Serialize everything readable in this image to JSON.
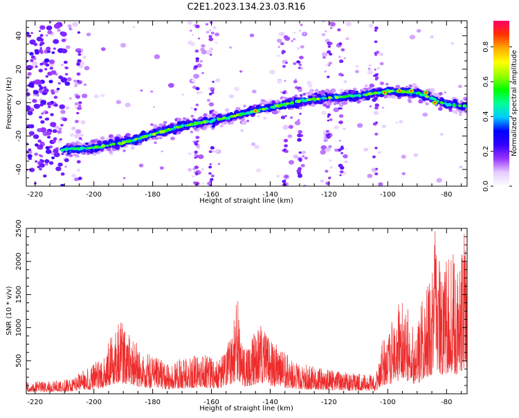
{
  "figure": {
    "title": "C2E1.2023.134.23.03.R16"
  },
  "chart_data": [
    {
      "type": "heatmap",
      "xlabel": "Height of straight line (km)",
      "ylabel": "Frequency (Hz)",
      "xlim": [
        -223,
        -73
      ],
      "ylim": [
        -50,
        49
      ],
      "x_ticks": [
        -220,
        -200,
        -180,
        -160,
        -140,
        -120,
        -100,
        -80
      ],
      "y_ticks": [
        -40,
        -20,
        0,
        20,
        40
      ],
      "grid": false,
      "colorbar": {
        "label": "Normalized spectral amplitude",
        "range": [
          0,
          0.95
        ],
        "ticks": [
          "0.0",
          "0.2",
          "0.4",
          "0.6",
          "0.8"
        ],
        "colormap": [
          "#ffffff",
          "#e6ccff",
          "#9933ff",
          "#3300ff",
          "#0000ff",
          "#00ccff",
          "#00ff99",
          "#00ff00",
          "#99ff00",
          "#ffff00",
          "#ffaa00",
          "#ff3300",
          "#ff0066"
        ]
      },
      "ridge": {
        "x": [
          -210,
          -200,
          -190,
          -180,
          -170,
          -160,
          -150,
          -140,
          -130,
          -120,
          -110,
          -100,
          -90,
          -80,
          -74
        ],
        "y": [
          -28,
          -27,
          -24,
          -19,
          -14,
          -11,
          -7,
          -3,
          1,
          3,
          4,
          7,
          6,
          -1,
          -2
        ],
        "peak_x": [
          -145,
          -101,
          -96,
          -92,
          -87,
          -84
        ],
        "peak_y": [
          -5,
          6,
          7,
          7,
          6,
          0
        ]
      },
      "noise_bands_x": [
        -218,
        -205,
        -165,
        -160,
        -135,
        -130,
        -120,
        -116,
        -104
      ]
    },
    {
      "type": "line",
      "xlabel": "Height of straight line (km)",
      "ylabel": "SNR (10 * v/v)",
      "xlim": [
        -223,
        -73
      ],
      "ylim": [
        0,
        2500
      ],
      "x_ticks": [
        -220,
        -200,
        -180,
        -160,
        -140,
        -120,
        -100,
        -80
      ],
      "y_ticks": [
        500,
        1000,
        1500,
        2000,
        2500
      ],
      "grid": false,
      "line_color": "#ee2c2c",
      "envelope": {
        "x": [
          -223,
          -210,
          -203,
          -198,
          -195,
          -191,
          -189,
          -185,
          -180,
          -175,
          -168,
          -162,
          -158,
          -155,
          -151,
          -149,
          -145,
          -143,
          -140,
          -135,
          -130,
          -124,
          -118,
          -113,
          -110,
          -106,
          -104,
          -102,
          -100,
          -98,
          -95,
          -92,
          -90,
          -88,
          -85,
          -84,
          -82,
          -80,
          -78,
          -76,
          -74,
          -73
        ],
        "y": [
          180,
          200,
          350,
          500,
          800,
          1100,
          1000,
          700,
          550,
          450,
          550,
          600,
          500,
          650,
          1400,
          700,
          900,
          1100,
          800,
          600,
          450,
          400,
          350,
          300,
          320,
          300,
          250,
          800,
          950,
          1100,
          1450,
          1100,
          900,
          1500,
          1900,
          2550,
          1800,
          2000,
          2200,
          1700,
          2500,
          2450
        ]
      }
    }
  ]
}
